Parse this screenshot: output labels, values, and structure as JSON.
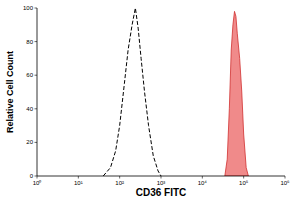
{
  "chart_data": {
    "type": "histogram",
    "log": "x",
    "grid": false,
    "xlabel": "CD36 FITC",
    "ylabel": "Relative Cell Count",
    "xlim": [
      1,
      1000000
    ],
    "xticks": [
      {
        "value": 1,
        "label": "10⁰"
      },
      {
        "value": 10,
        "label": "10¹"
      },
      {
        "value": 100,
        "label": "10²"
      },
      {
        "value": 1000,
        "label": "10³"
      },
      {
        "value": 10000,
        "label": "10⁴"
      },
      {
        "value": 100000,
        "label": "10⁵"
      },
      {
        "value": 1000000,
        "label": "10⁶"
      }
    ],
    "ylim": [
      0,
      100
    ],
    "yticks": [
      0,
      20,
      40,
      60,
      80,
      100
    ],
    "series": [
      {
        "type": "line",
        "line_style": "dashed",
        "color": "#000000",
        "x": [
          40,
          60,
          80,
          100,
          130,
          160,
          200,
          240,
          280,
          330,
          400,
          500,
          650,
          850,
          1000
        ],
        "values": [
          0,
          5,
          15,
          30,
          55,
          75,
          90,
          100,
          88,
          70,
          50,
          30,
          12,
          3,
          0
        ]
      },
      {
        "type": "area",
        "color": "#f08a8a",
        "x": [
          35000,
          40000,
          45000,
          50000,
          55000,
          60000,
          65000,
          70000,
          80000,
          90000,
          100000,
          115000,
          130000
        ],
        "values": [
          0,
          10,
          40,
          75,
          90,
          98,
          95,
          85,
          70,
          50,
          25,
          5,
          0
        ]
      }
    ]
  }
}
